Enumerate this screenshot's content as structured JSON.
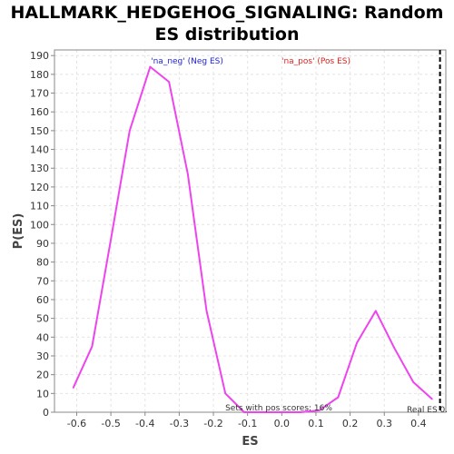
{
  "chart_data": {
    "type": "line",
    "title_line1": "HALLMARK_HEDGEHOG_SIGNALING: Random",
    "title_line2": "ES distribution",
    "xlabel": "ES",
    "ylabel": "P(ES)",
    "xlim": [
      -0.665,
      0.48
    ],
    "ylim": [
      0,
      193
    ],
    "x_ticks": [
      -0.6,
      -0.5,
      -0.4,
      -0.3,
      -0.2,
      -0.1,
      0.0,
      0.1,
      0.2,
      0.3,
      0.4
    ],
    "x_tick_labels": [
      "-0.6",
      "-0.5",
      "-0.4",
      "-0.3",
      "-0.2",
      "-0.1",
      "0.0",
      "0.1",
      "0.2",
      "0.3",
      "0.4"
    ],
    "y_ticks": [
      0,
      10,
      20,
      30,
      40,
      50,
      60,
      70,
      80,
      90,
      100,
      110,
      120,
      130,
      140,
      150,
      160,
      170,
      180,
      190
    ],
    "grid": true,
    "series": [
      {
        "color": "#ee44ee",
        "x": [
          -0.61,
          -0.555,
          -0.5,
          -0.445,
          -0.385,
          -0.33,
          -0.275,
          -0.22,
          -0.165,
          -0.11,
          -0.055,
          0.0,
          0.055,
          0.11,
          0.165,
          0.22,
          0.275,
          0.33,
          0.385,
          0.44
        ],
        "y": [
          13,
          35,
          92,
          150,
          184,
          176,
          127,
          54,
          10,
          0,
          0,
          0,
          0,
          1,
          8,
          37,
          54,
          34,
          16,
          7
        ]
      }
    ],
    "annotations": {
      "neg_label": "'na_neg' (Neg ES)",
      "neg_color": "#2222dd",
      "pos_label": "'na_pos' (Pos ES)",
      "pos_color": "#dd2222",
      "sets_pos_text": "Sets with pos scores: 16%",
      "real_es_text": "Real ES 0.",
      "real_es_value": 0.463
    }
  }
}
